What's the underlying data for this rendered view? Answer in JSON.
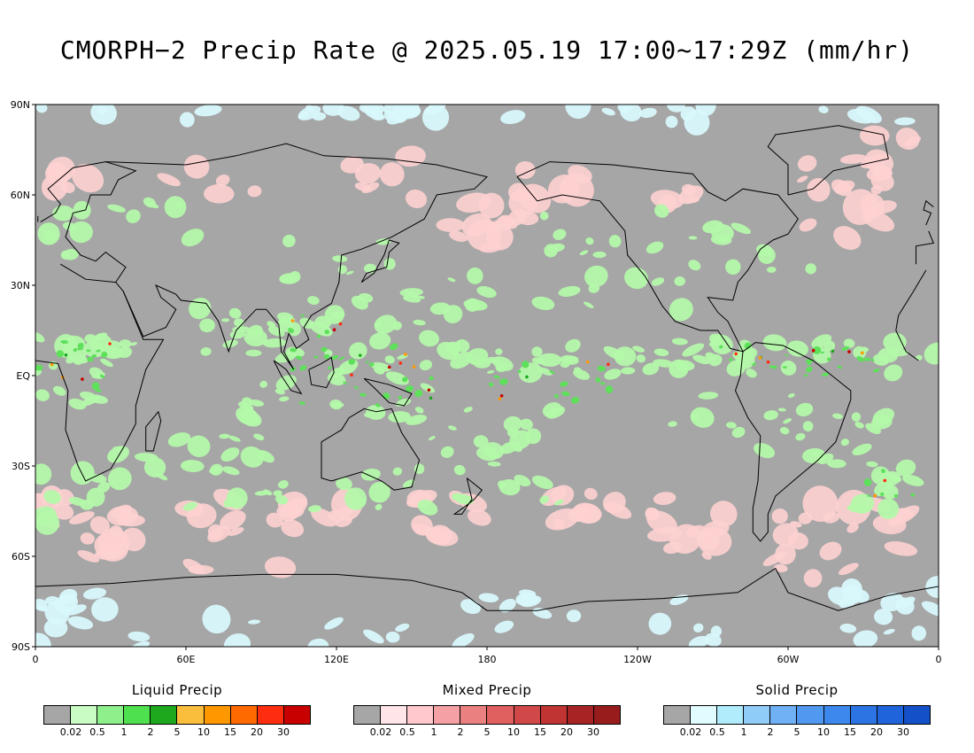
{
  "title": "CMORPH−2 Precip Rate @ 2025.05.19 17:00~17:29Z (mm/hr)",
  "lat_labels": [
    "90N",
    "60N",
    "30N",
    "EQ",
    "30S",
    "60S",
    "90S"
  ],
  "lon_labels": [
    "0",
    "60E",
    "120E",
    "180",
    "120W",
    "60W",
    "0"
  ],
  "legends": [
    {
      "name": "liquid",
      "title": "Liquid Precip",
      "colors": [
        "#a6a6a6",
        "#c8fcc4",
        "#8ef08a",
        "#4fe04f",
        "#1ea81e",
        "#fbbd3c",
        "#ff9800",
        "#ff6a00",
        "#ff2d10",
        "#c80000"
      ],
      "ticks": [
        "0.02",
        "0.5",
        "1",
        "2",
        "5",
        "10",
        "15",
        "20",
        "30"
      ]
    },
    {
      "name": "mixed",
      "title": "Mixed Precip",
      "colors": [
        "#a6a6a6",
        "#ffe4e8",
        "#ffc8cc",
        "#f4a0a4",
        "#ea8080",
        "#e06060",
        "#d04848",
        "#c03434",
        "#a82424",
        "#981c1c"
      ],
      "ticks": [
        "0.02",
        "0.5",
        "1",
        "2",
        "5",
        "10",
        "15",
        "20",
        "30"
      ]
    },
    {
      "name": "solid",
      "title": "Solid Precip",
      "colors": [
        "#a6a6a6",
        "#e0fcff",
        "#b0ecfc",
        "#90ccf8",
        "#70b0f4",
        "#5098f0",
        "#3c88ec",
        "#2c74e4",
        "#2064dc",
        "#1450c8"
      ],
      "ticks": [
        "0.02",
        "0.5",
        "1",
        "2",
        "5",
        "10",
        "15",
        "20",
        "30"
      ]
    }
  ],
  "colors": {
    "background_gray": "#a6a6a6",
    "liquid_green": "#b4f8aa",
    "liquid_mid": "#5ee05a",
    "mixed_pink": "#ffd2d2",
    "solid_ice": "#d8f8fc",
    "coastline": "#000000"
  }
}
